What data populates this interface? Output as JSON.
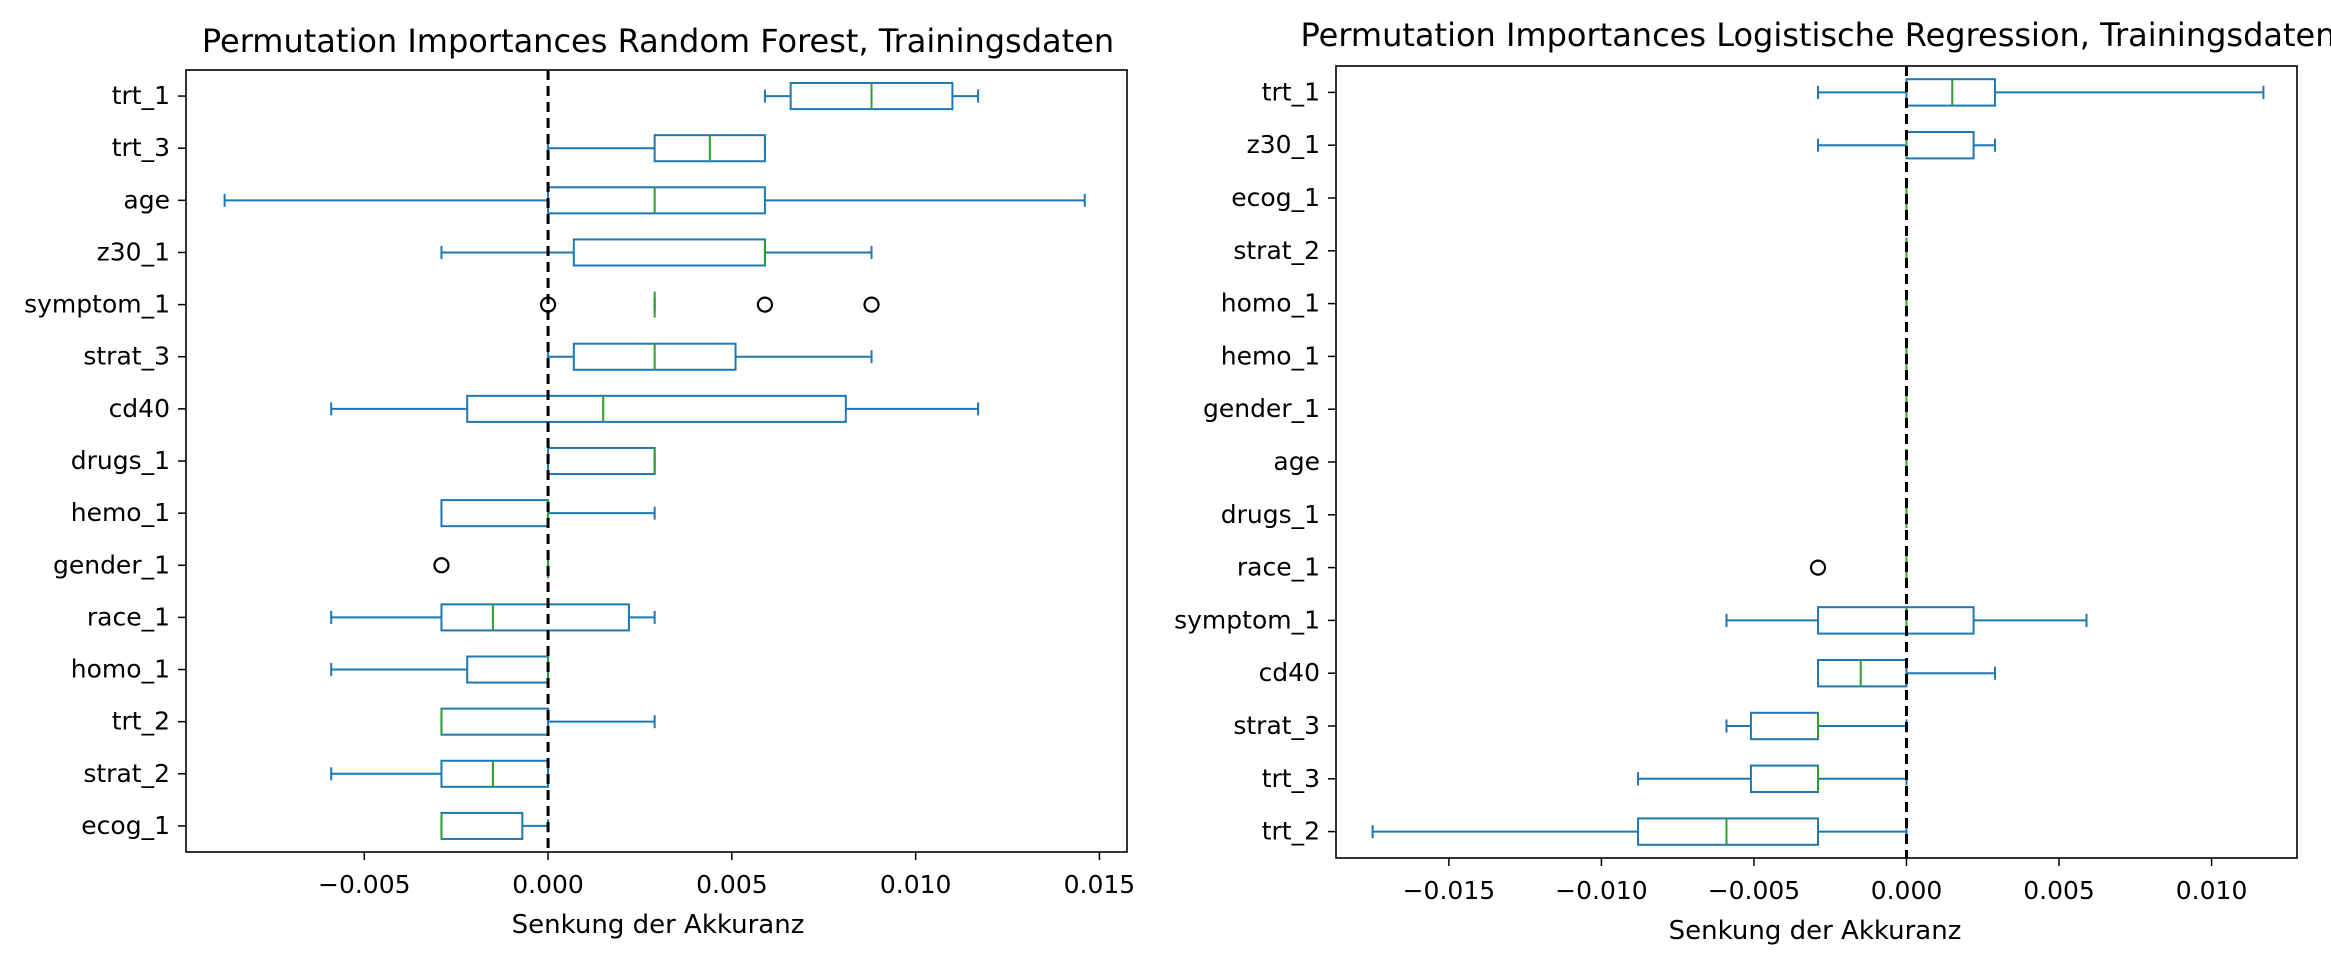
{
  "chart_data": [
    {
      "type": "boxplot",
      "orientation": "horizontal",
      "title": "Permutation Importances Random Forest, Trainingsdaten",
      "xlabel": "Senkung der Akkuranz",
      "ylabel": "",
      "xlim": [
        -0.00985,
        0.01575
      ],
      "xticks": [
        -0.005,
        0.0,
        0.005,
        0.01,
        0.015
      ],
      "xtick_labels": [
        "−0.005",
        "0.000",
        "0.005",
        "0.010",
        "0.015"
      ],
      "reference_line": 0.0,
      "box_color": "#1f77b4",
      "median_color": "#2ca02c",
      "categories": [
        "trt_1",
        "trt_3",
        "age",
        "z30_1",
        "symptom_1",
        "strat_3",
        "cd40",
        "drugs_1",
        "hemo_1",
        "gender_1",
        "race_1",
        "homo_1",
        "trt_2",
        "strat_2",
        "ecog_1"
      ],
      "boxes": [
        {
          "whislo": 0.0059,
          "q1": 0.0066,
          "med": 0.0088,
          "q3": 0.011,
          "whishi": 0.0117,
          "fliers": []
        },
        {
          "whislo": 0.0,
          "q1": 0.0029,
          "med": 0.0044,
          "q3": 0.0059,
          "whishi": 0.0059,
          "fliers": []
        },
        {
          "whislo": -0.0088,
          "q1": 0.0,
          "med": 0.0029,
          "q3": 0.0059,
          "whishi": 0.0146,
          "fliers": []
        },
        {
          "whislo": -0.0029,
          "q1": 0.0007,
          "med": 0.0059,
          "q3": 0.0059,
          "whishi": 0.0088,
          "fliers": []
        },
        {
          "whislo": 0.0029,
          "q1": 0.0029,
          "med": 0.0029,
          "q3": 0.0029,
          "whishi": 0.0029,
          "fliers": [
            0.0,
            0.0059,
            0.0088
          ]
        },
        {
          "whislo": 0.0,
          "q1": 0.0007,
          "med": 0.0029,
          "q3": 0.0051,
          "whishi": 0.0088,
          "fliers": []
        },
        {
          "whislo": -0.0059,
          "q1": -0.0022,
          "med": 0.0015,
          "q3": 0.0081,
          "whishi": 0.0117,
          "fliers": []
        },
        {
          "whislo": 0.0,
          "q1": 0.0,
          "med": 0.0029,
          "q3": 0.0029,
          "whishi": 0.0029,
          "fliers": []
        },
        {
          "whislo": -0.0029,
          "q1": -0.0029,
          "med": 0.0,
          "q3": 0.0,
          "whishi": 0.0029,
          "fliers": []
        },
        {
          "whislo": 0.0,
          "q1": 0.0,
          "med": 0.0,
          "q3": 0.0,
          "whishi": 0.0,
          "fliers": [
            -0.0029
          ]
        },
        {
          "whislo": -0.0059,
          "q1": -0.0029,
          "med": -0.0015,
          "q3": 0.0022,
          "whishi": 0.0029,
          "fliers": []
        },
        {
          "whislo": -0.0059,
          "q1": -0.0022,
          "med": 0.0,
          "q3": 0.0,
          "whishi": 0.0,
          "fliers": []
        },
        {
          "whislo": -0.0029,
          "q1": -0.0029,
          "med": -0.0029,
          "q3": 0.0,
          "whishi": 0.0029,
          "fliers": []
        },
        {
          "whislo": -0.0059,
          "q1": -0.0029,
          "med": -0.0015,
          "q3": 0.0,
          "whishi": 0.0,
          "fliers": []
        },
        {
          "whislo": -0.0029,
          "q1": -0.0029,
          "med": -0.0029,
          "q3": -0.0007,
          "whishi": 0.0,
          "fliers": []
        }
      ]
    },
    {
      "type": "boxplot",
      "orientation": "horizontal",
      "title": "Permutation Importances Logistische Regression, Trainingsdaten",
      "xlabel": "Senkung der Akkuranz",
      "ylabel": "",
      "xlim": [
        -0.0187,
        0.0128
      ],
      "xticks": [
        -0.015,
        -0.01,
        -0.005,
        0.0,
        0.005,
        0.01
      ],
      "xtick_labels": [
        "−0.015",
        "−0.010",
        "−0.005",
        "0.000",
        "0.005",
        "0.010"
      ],
      "reference_line": 0.0,
      "box_color": "#1f77b4",
      "median_color": "#2ca02c",
      "categories": [
        "trt_1",
        "z30_1",
        "ecog_1",
        "strat_2",
        "homo_1",
        "hemo_1",
        "gender_1",
        "age",
        "drugs_1",
        "race_1",
        "symptom_1",
        "cd40",
        "strat_3",
        "trt_3",
        "trt_2"
      ],
      "boxes": [
        {
          "whislo": -0.0029,
          "q1": 0.0,
          "med": 0.0015,
          "q3": 0.0029,
          "whishi": 0.0117,
          "fliers": []
        },
        {
          "whislo": -0.0029,
          "q1": 0.0,
          "med": 0.0,
          "q3": 0.0022,
          "whishi": 0.0029,
          "fliers": []
        },
        {
          "whislo": 0.0,
          "q1": 0.0,
          "med": 0.0,
          "q3": 0.0,
          "whishi": 0.0,
          "fliers": []
        },
        {
          "whislo": 0.0,
          "q1": 0.0,
          "med": 0.0,
          "q3": 0.0,
          "whishi": 0.0,
          "fliers": []
        },
        {
          "whislo": 0.0,
          "q1": 0.0,
          "med": 0.0,
          "q3": 0.0,
          "whishi": 0.0,
          "fliers": []
        },
        {
          "whislo": 0.0,
          "q1": 0.0,
          "med": 0.0,
          "q3": 0.0,
          "whishi": 0.0,
          "fliers": []
        },
        {
          "whislo": 0.0,
          "q1": 0.0,
          "med": 0.0,
          "q3": 0.0,
          "whishi": 0.0,
          "fliers": []
        },
        {
          "whislo": 0.0,
          "q1": 0.0,
          "med": 0.0,
          "q3": 0.0,
          "whishi": 0.0,
          "fliers": []
        },
        {
          "whislo": 0.0,
          "q1": 0.0,
          "med": 0.0,
          "q3": 0.0,
          "whishi": 0.0,
          "fliers": []
        },
        {
          "whislo": 0.0,
          "q1": 0.0,
          "med": 0.0,
          "q3": 0.0,
          "whishi": 0.0,
          "fliers": [
            -0.0029
          ]
        },
        {
          "whislo": -0.0059,
          "q1": -0.0029,
          "med": 0.0,
          "q3": 0.0022,
          "whishi": 0.0059,
          "fliers": []
        },
        {
          "whislo": -0.0029,
          "q1": -0.0029,
          "med": -0.0015,
          "q3": 0.0,
          "whishi": 0.0029,
          "fliers": []
        },
        {
          "whislo": -0.0059,
          "q1": -0.0051,
          "med": -0.0029,
          "q3": -0.0029,
          "whishi": 0.0,
          "fliers": []
        },
        {
          "whislo": -0.0088,
          "q1": -0.0051,
          "med": -0.0029,
          "q3": -0.0029,
          "whishi": 0.0,
          "fliers": []
        },
        {
          "whislo": -0.0175,
          "q1": -0.0088,
          "med": -0.0059,
          "q3": -0.0029,
          "whishi": 0.0,
          "fliers": []
        }
      ]
    }
  ]
}
